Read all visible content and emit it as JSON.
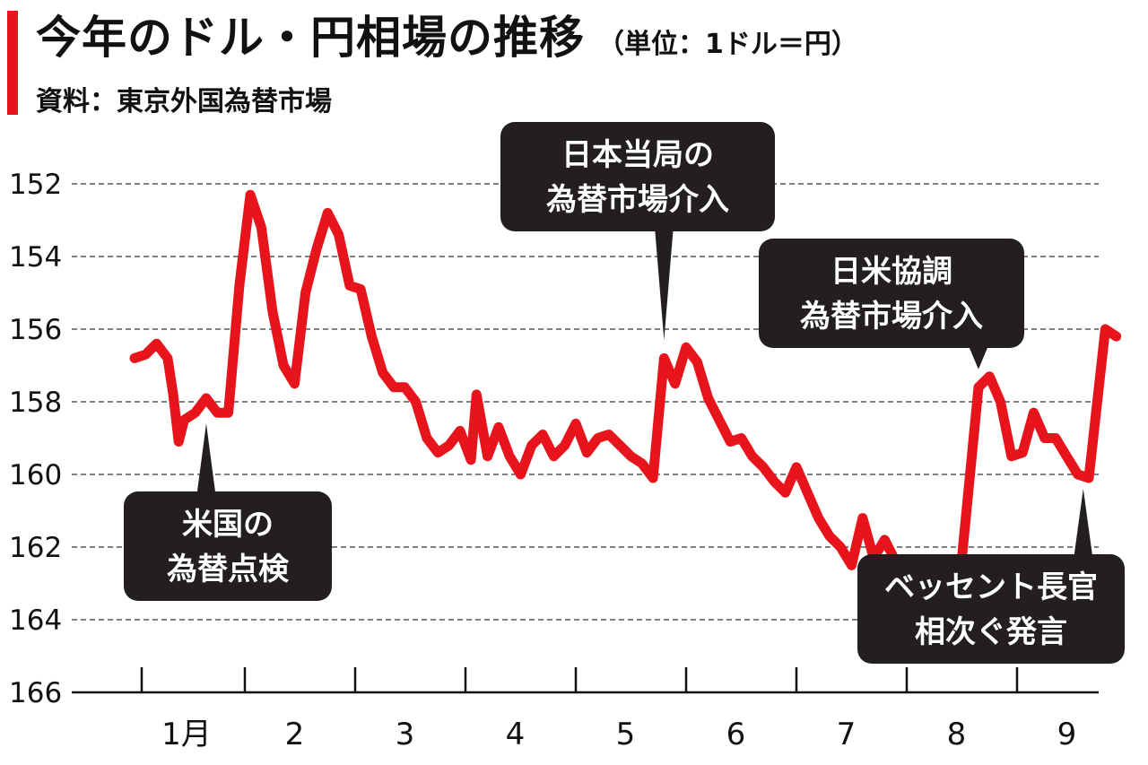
{
  "header": {
    "title": "今年のドル・円相場の推移",
    "unit": "（単位：1ドル＝円）",
    "source": "資料：東京外国為替市場"
  },
  "colors": {
    "line": "#e8141b",
    "callout_bg": "#231f20",
    "accent": "#e8141b"
  },
  "chart_data": {
    "type": "line",
    "title": "今年のドル・円相場の推移",
    "unit": "（単位：1ドル＝円）",
    "source": "資料：東京外国為替市場",
    "y_axis": {
      "inverted": true,
      "ylim": [
        152,
        166
      ],
      "ticks": [
        "152",
        "154",
        "156",
        "158",
        "160",
        "162",
        "164",
        "166"
      ],
      "grid": "dashed"
    },
    "x_axis": {
      "categories": [
        "1月",
        "2",
        "3",
        "4",
        "5",
        "6",
        "7",
        "8",
        "9"
      ],
      "xlim": [
        0.0,
        9.5
      ]
    },
    "series": [
      {
        "values": [
          [
            0.0,
            156.8
          ],
          [
            0.1,
            156.7
          ],
          [
            0.2,
            156.4
          ],
          [
            0.3,
            156.8
          ],
          [
            0.35,
            157.8
          ],
          [
            0.4,
            159.1
          ],
          [
            0.45,
            158.5
          ],
          [
            0.55,
            158.3
          ],
          [
            0.65,
            157.9
          ],
          [
            0.75,
            158.3
          ],
          [
            0.85,
            158.3
          ],
          [
            0.95,
            154.8
          ],
          [
            1.05,
            152.3
          ],
          [
            1.15,
            153.2
          ],
          [
            1.25,
            155.5
          ],
          [
            1.35,
            157.0
          ],
          [
            1.45,
            157.5
          ],
          [
            1.55,
            155.0
          ],
          [
            1.65,
            153.8
          ],
          [
            1.75,
            152.8
          ],
          [
            1.85,
            153.4
          ],
          [
            1.95,
            154.8
          ],
          [
            2.05,
            154.9
          ],
          [
            2.15,
            156.2
          ],
          [
            2.25,
            157.2
          ],
          [
            2.35,
            157.6
          ],
          [
            2.45,
            157.6
          ],
          [
            2.55,
            158.0
          ],
          [
            2.65,
            159.0
          ],
          [
            2.75,
            159.4
          ],
          [
            2.85,
            159.2
          ],
          [
            2.95,
            158.8
          ],
          [
            3.05,
            159.6
          ],
          [
            3.1,
            157.8
          ],
          [
            3.2,
            159.5
          ],
          [
            3.3,
            158.7
          ],
          [
            3.4,
            159.5
          ],
          [
            3.5,
            160.0
          ],
          [
            3.6,
            159.2
          ],
          [
            3.7,
            158.9
          ],
          [
            3.8,
            159.5
          ],
          [
            3.9,
            159.2
          ],
          [
            4.0,
            158.6
          ],
          [
            4.1,
            159.4
          ],
          [
            4.2,
            159.0
          ],
          [
            4.3,
            158.9
          ],
          [
            4.4,
            159.2
          ],
          [
            4.5,
            159.5
          ],
          [
            4.6,
            159.7
          ],
          [
            4.7,
            160.1
          ],
          [
            4.8,
            156.8
          ],
          [
            4.9,
            157.5
          ],
          [
            5.0,
            156.5
          ],
          [
            5.1,
            156.9
          ],
          [
            5.2,
            157.9
          ],
          [
            5.3,
            158.5
          ],
          [
            5.4,
            159.1
          ],
          [
            5.5,
            159.0
          ],
          [
            5.6,
            159.5
          ],
          [
            5.7,
            159.8
          ],
          [
            5.8,
            160.2
          ],
          [
            5.9,
            160.5
          ],
          [
            6.0,
            159.8
          ],
          [
            6.1,
            160.5
          ],
          [
            6.2,
            161.2
          ],
          [
            6.3,
            161.7
          ],
          [
            6.4,
            162.0
          ],
          [
            6.5,
            162.5
          ],
          [
            6.6,
            161.2
          ],
          [
            6.7,
            162.3
          ],
          [
            6.8,
            161.8
          ],
          [
            6.9,
            162.4
          ],
          [
            7.0,
            162.8
          ],
          [
            7.1,
            163.0
          ],
          [
            7.2,
            162.9
          ],
          [
            7.35,
            162.5
          ],
          [
            7.5,
            162.3
          ],
          [
            7.65,
            157.6
          ],
          [
            7.75,
            157.3
          ],
          [
            7.85,
            158.0
          ],
          [
            7.95,
            159.5
          ],
          [
            8.05,
            159.4
          ],
          [
            8.15,
            158.3
          ],
          [
            8.25,
            159.0
          ],
          [
            8.35,
            159.0
          ],
          [
            8.45,
            159.5
          ],
          [
            8.55,
            160.0
          ],
          [
            8.65,
            160.1
          ],
          [
            8.8,
            156.0
          ],
          [
            8.9,
            156.2
          ]
        ]
      }
    ],
    "annotations": [
      {
        "lines": [
          "米国の",
          "為替点検"
        ],
        "x": 0.65,
        "y": 158.3
      },
      {
        "lines": [
          "日本当局の",
          "為替市場介入"
        ],
        "x": 4.8,
        "y": 156.6
      },
      {
        "lines": [
          "日米協調",
          "為替市場介入"
        ],
        "x": 7.65,
        "y": 157.4
      },
      {
        "lines": [
          "ベッセント長官",
          "相次ぐ発言"
        ],
        "x": 8.6,
        "y": 160.1
      }
    ]
  }
}
